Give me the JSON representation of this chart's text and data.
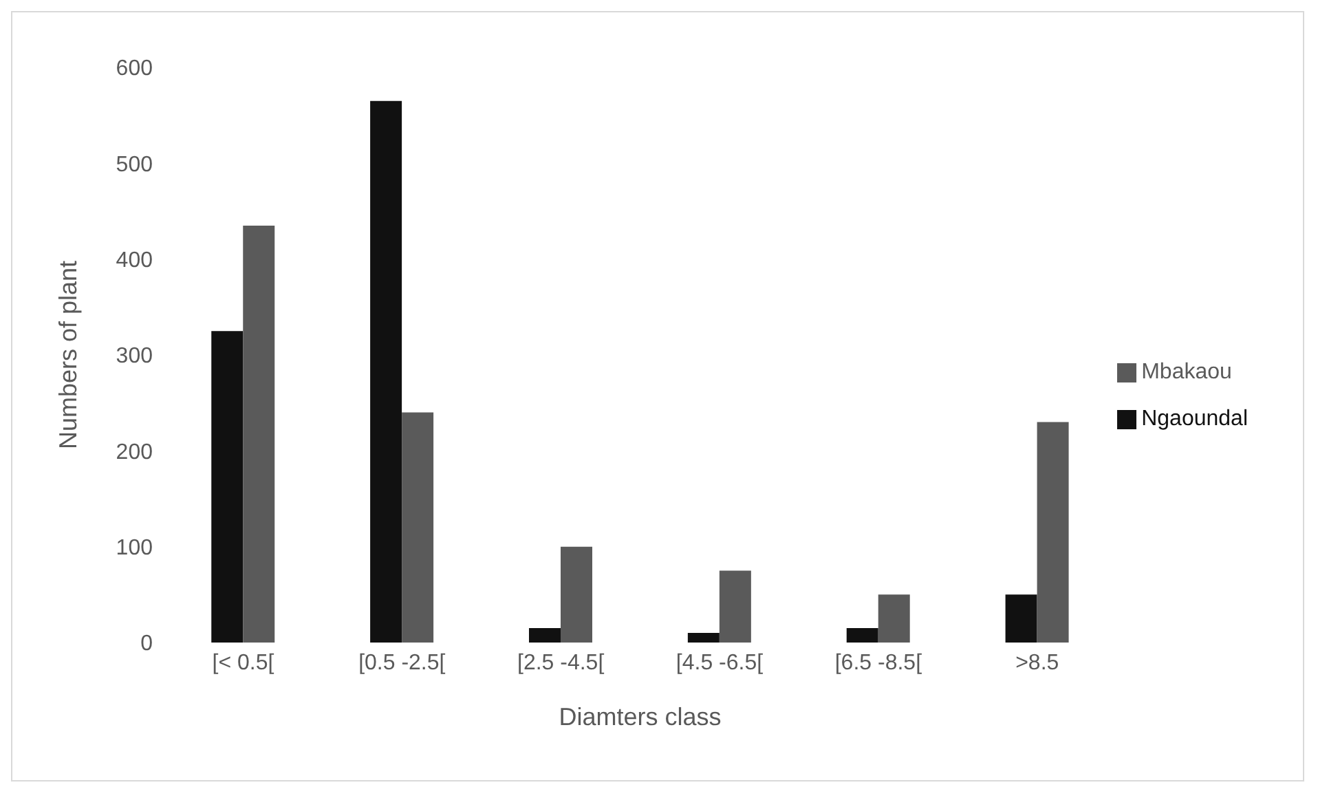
{
  "chart_data": {
    "type": "bar",
    "xlabel": "Diamters class",
    "ylabel": "Numbers of plant",
    "categories": [
      "[< 0.5[",
      "[0.5 -2.5[",
      "[2.5 -4.5[",
      "[4.5 -6.5[",
      "[6.5 -8.5[",
      ">8.5"
    ],
    "series": [
      {
        "name": "Ngaoundal",
        "color": "#111111",
        "values": [
          325,
          565,
          15,
          10,
          15,
          50
        ]
      },
      {
        "name": "Mbakaou",
        "color": "#5a5a5a",
        "values": [
          435,
          240,
          100,
          75,
          50,
          230
        ]
      }
    ],
    "ylim": [
      0,
      600
    ],
    "yticks": [
      0,
      100,
      200,
      300,
      400,
      500,
      600
    ],
    "grid": false,
    "legend": "right"
  }
}
